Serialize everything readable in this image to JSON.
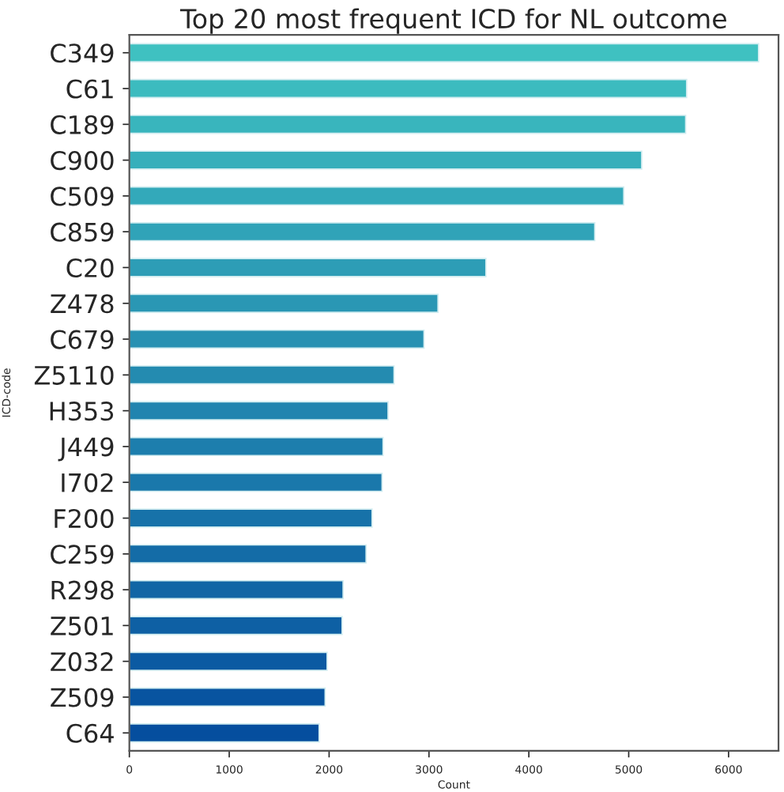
{
  "chart_data": {
    "type": "bar",
    "orientation": "horizontal",
    "title": "Top 20 most frequent ICD for NL outcome",
    "xlabel": "Count",
    "ylabel": "ICD-code",
    "categories": [
      "C349",
      "C61",
      "C189",
      "C900",
      "C509",
      "C859",
      "C20",
      "Z478",
      "C679",
      "Z5110",
      "H353",
      "J449",
      "I702",
      "F200",
      "C259",
      "R298",
      "Z501",
      "Z032",
      "Z509",
      "C64"
    ],
    "values": [
      6300,
      5580,
      5570,
      5130,
      4950,
      4660,
      3570,
      3090,
      2950,
      2650,
      2590,
      2540,
      2530,
      2430,
      2370,
      2140,
      2130,
      1980,
      1960,
      1900
    ],
    "colors": [
      "#3fc1c1",
      "#3cbbbf",
      "#39b5bd",
      "#36afbb",
      "#33a9ba",
      "#30a3b8",
      "#2d9db6",
      "#2a97b4",
      "#2791b2",
      "#248bb0",
      "#2184af",
      "#1d7ead",
      "#1a78ab",
      "#1772a9",
      "#146ca7",
      "#1166a5",
      "#0e60a4",
      "#0b5aa2",
      "#0854a0",
      "#054e9e"
    ],
    "xlim": [
      0,
      6500
    ],
    "xticks": [
      0,
      1000,
      2000,
      3000,
      4000,
      5000,
      6000
    ],
    "grid": false,
    "legend": false
  }
}
